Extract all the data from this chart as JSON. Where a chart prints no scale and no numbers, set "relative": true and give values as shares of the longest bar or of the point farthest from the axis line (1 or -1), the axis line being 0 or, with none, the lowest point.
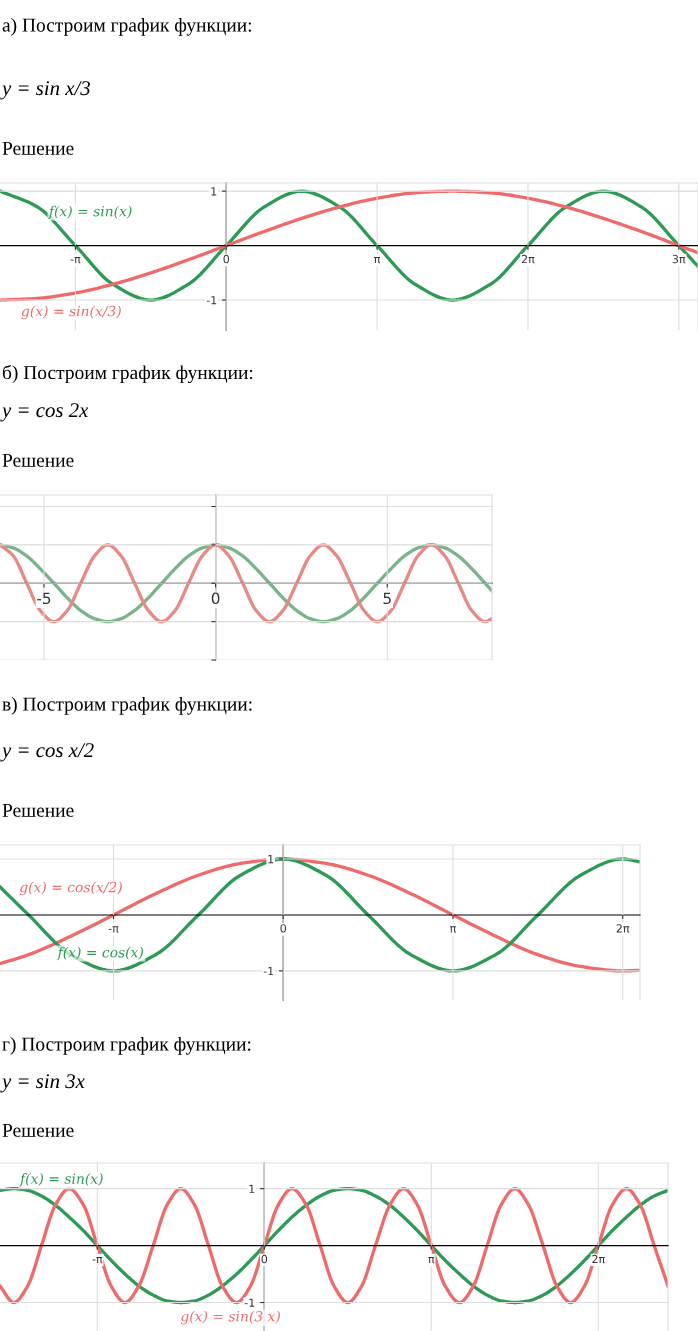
{
  "chart_data": [
    {
      "type": "line",
      "title": "а) Построим график функции:",
      "subtitle": "y = sin x/3",
      "annotations": [
        "Решение"
      ],
      "x": [
        -4.71,
        -3.93,
        -3.14,
        -2.36,
        -1.57,
        -0.79,
        0,
        0.79,
        1.57,
        2.36,
        3.14,
        3.93,
        4.71,
        5.5,
        6.28,
        7.07,
        7.85,
        8.64,
        9.42,
        9.82
      ],
      "series": [
        {
          "name": "f(x) = sin(x)",
          "color": "#2e9a55",
          "values": [
            1,
            0.71,
            0,
            -0.71,
            -1,
            -0.71,
            0,
            0.71,
            1,
            0.71,
            0,
            -0.71,
            -1,
            -0.71,
            0,
            0.71,
            1,
            0.71,
            0,
            -0.38
          ]
        },
        {
          "name": "g(x) = sin(x/3)",
          "color": "#ee6b6b",
          "values": [
            -1,
            -0.97,
            -0.87,
            -0.71,
            -0.5,
            -0.26,
            0,
            0.26,
            0.5,
            0.71,
            0.87,
            0.97,
            1,
            0.97,
            0.87,
            0.71,
            0.5,
            0.26,
            0,
            -0.13
          ]
        }
      ],
      "xlim": [
        -4.71,
        9.82
      ],
      "ylim": [
        -1.55,
        1.15
      ],
      "xticks": [
        {
          "value": -3.14,
          "label": "-π"
        },
        0,
        {
          "value": 3.14,
          "label": "π"
        },
        {
          "value": 6.28,
          "label": "2π"
        },
        {
          "value": 9.42,
          "label": "3π"
        }
      ],
      "yticks": [
        -1,
        1
      ],
      "grid": true,
      "legend": false,
      "marker": "none",
      "line_style": "solid"
    },
    {
      "type": "line",
      "title": "б) Построим график функции:",
      "subtitle": "y = cos 2x",
      "annotations": [
        "Решение"
      ],
      "relative": true,
      "x": [
        -6.28,
        -5.89,
        -5.5,
        -5.11,
        -4.71,
        -4.32,
        -3.93,
        -3.53,
        -3.14,
        -2.75,
        -2.36,
        -1.96,
        -1.57,
        -1.18,
        -0.79,
        -0.39,
        0,
        0.39,
        0.79,
        1.18,
        1.57,
        1.96,
        2.36,
        2.75,
        3.14,
        3.53,
        3.93,
        4.32,
        4.71,
        5.11,
        5.5,
        5.89,
        6.28,
        6.68,
        7.07,
        7.46,
        7.85,
        8.05
      ],
      "series": [
        {
          "color": "#7ab58a",
          "values": [
            1,
            0.92,
            0.71,
            0.38,
            0,
            -0.38,
            -0.71,
            -0.92,
            -1,
            -0.92,
            -0.71,
            -0.38,
            0,
            0.38,
            0.71,
            0.92,
            1,
            0.92,
            0.71,
            0.38,
            0,
            -0.38,
            -0.71,
            -0.92,
            -1,
            -0.92,
            -0.71,
            -0.38,
            0,
            0.38,
            0.71,
            0.92,
            1,
            0.92,
            0.71,
            0.38,
            0,
            -0.2
          ]
        },
        {
          "color": "#e68a86",
          "values": [
            1,
            0.71,
            0,
            -0.71,
            -1,
            -0.71,
            0,
            0.71,
            1,
            0.71,
            0,
            -0.71,
            -1,
            -0.71,
            0,
            0.71,
            1,
            0.71,
            0,
            -0.71,
            -1,
            -0.71,
            0,
            0.71,
            1,
            0.71,
            0,
            -0.71,
            -1,
            -0.71,
            0,
            0.71,
            1,
            0.71,
            0,
            -0.71,
            -1,
            -0.92
          ]
        }
      ],
      "xlim": [
        -6.28,
        8.05
      ],
      "xticks": [
        -5,
        0,
        5
      ],
      "tick_labels": "x",
      "grid": true,
      "legend": false,
      "marker": "none",
      "line_style": "solid"
    },
    {
      "type": "line",
      "title": "в) Построим график функции:",
      "subtitle": "y = cos x/2",
      "annotations": [
        "Решение"
      ],
      "x": [
        -5.24,
        -4.71,
        -3.93,
        -3.14,
        -2.36,
        -1.57,
        -0.79,
        0,
        0.79,
        1.57,
        2.36,
        3.14,
        3.93,
        4.71,
        5.5,
        6.28,
        6.6
      ],
      "series": [
        {
          "name": "g(x) = cos(x/2)",
          "color": "#ee6b6b",
          "values": [
            -0.87,
            -0.71,
            -0.38,
            0,
            0.38,
            0.71,
            0.92,
            1,
            0.92,
            0.71,
            0.38,
            0,
            -0.38,
            -0.71,
            -0.92,
            -1,
            -0.99
          ]
        },
        {
          "name": "f(x) = cos(x)",
          "color": "#2e9a55",
          "values": [
            0.5,
            0,
            -0.71,
            -1,
            -0.71,
            0,
            0.71,
            1,
            0.71,
            0,
            -0.71,
            -1,
            -0.71,
            0,
            0.71,
            1,
            0.95
          ]
        }
      ],
      "xlim": [
        -5.24,
        6.6
      ],
      "ylim": [
        -1.52,
        1.25
      ],
      "xticks": [
        {
          "value": -3.14,
          "label": "-π"
        },
        0,
        {
          "value": 3.14,
          "label": "π"
        },
        {
          "value": 6.28,
          "label": "2π"
        }
      ],
      "yticks": [
        -1,
        1
      ],
      "grid": true,
      "legend": false,
      "marker": "none",
      "line_style": "solid"
    },
    {
      "type": "line",
      "title": "г) Построим график функции:",
      "subtitle": "y = sin 3x",
      "annotations": [
        "Решение"
      ],
      "x": [
        -4.97,
        -4.71,
        -4.45,
        -4.19,
        -3.93,
        -3.67,
        -3.4,
        -3.14,
        -2.88,
        -2.62,
        -2.36,
        -2.09,
        -1.83,
        -1.57,
        -1.31,
        -1.05,
        -0.79,
        -0.52,
        -0.26,
        0,
        0.26,
        0.52,
        0.79,
        1.05,
        1.31,
        1.57,
        1.83,
        2.09,
        2.36,
        2.62,
        2.88,
        3.14,
        3.4,
        3.67,
        3.93,
        4.19,
        4.45,
        4.71,
        4.97,
        5.24,
        5.5,
        5.76,
        6.02,
        6.28,
        6.54,
        6.81,
        7.07,
        7.33,
        7.59
      ],
      "series": [
        {
          "name": "f(x) = sin(x)",
          "color": "#2e9a55",
          "values": [
            0.97,
            1,
            0.97,
            0.87,
            0.71,
            0.5,
            0.26,
            0,
            -0.26,
            -0.5,
            -0.71,
            -0.87,
            -0.97,
            -1,
            -0.97,
            -0.87,
            -0.71,
            -0.5,
            -0.26,
            0,
            0.26,
            0.5,
            0.71,
            0.87,
            0.97,
            1,
            0.97,
            0.87,
            0.71,
            0.5,
            0.26,
            0,
            -0.26,
            -0.5,
            -0.71,
            -0.87,
            -0.97,
            -1,
            -0.97,
            -0.87,
            -0.71,
            -0.5,
            -0.26,
            0,
            0.26,
            0.5,
            0.71,
            0.87,
            0.97
          ]
        },
        {
          "name": "g(x) = sin(3 x)",
          "color": "#ee6b6b",
          "values": [
            -0.71,
            -1,
            -0.71,
            0,
            0.71,
            1,
            0.71,
            0,
            -0.71,
            -1,
            -0.71,
            0,
            0.71,
            1,
            0.71,
            0,
            -0.71,
            -1,
            -0.71,
            0,
            0.71,
            1,
            0.71,
            0,
            -0.71,
            -1,
            -0.71,
            0,
            0.71,
            1,
            0.71,
            0,
            -0.71,
            -1,
            -0.71,
            0,
            0.71,
            1,
            0.71,
            0,
            -0.71,
            -1,
            -0.71,
            0,
            0.71,
            1,
            0.71,
            0,
            -0.71
          ]
        }
      ],
      "xlim": [
        -4.97,
        7.59
      ],
      "ylim": [
        -1.5,
        1.45
      ],
      "xticks": [
        {
          "value": -3.14,
          "label": "-π"
        },
        0,
        {
          "value": 3.14,
          "label": "π"
        },
        {
          "value": 6.28,
          "label": "2π"
        }
      ],
      "yticks": [
        -1,
        1
      ],
      "grid": true,
      "legend": false,
      "marker": "none",
      "line_style": "solid"
    }
  ]
}
